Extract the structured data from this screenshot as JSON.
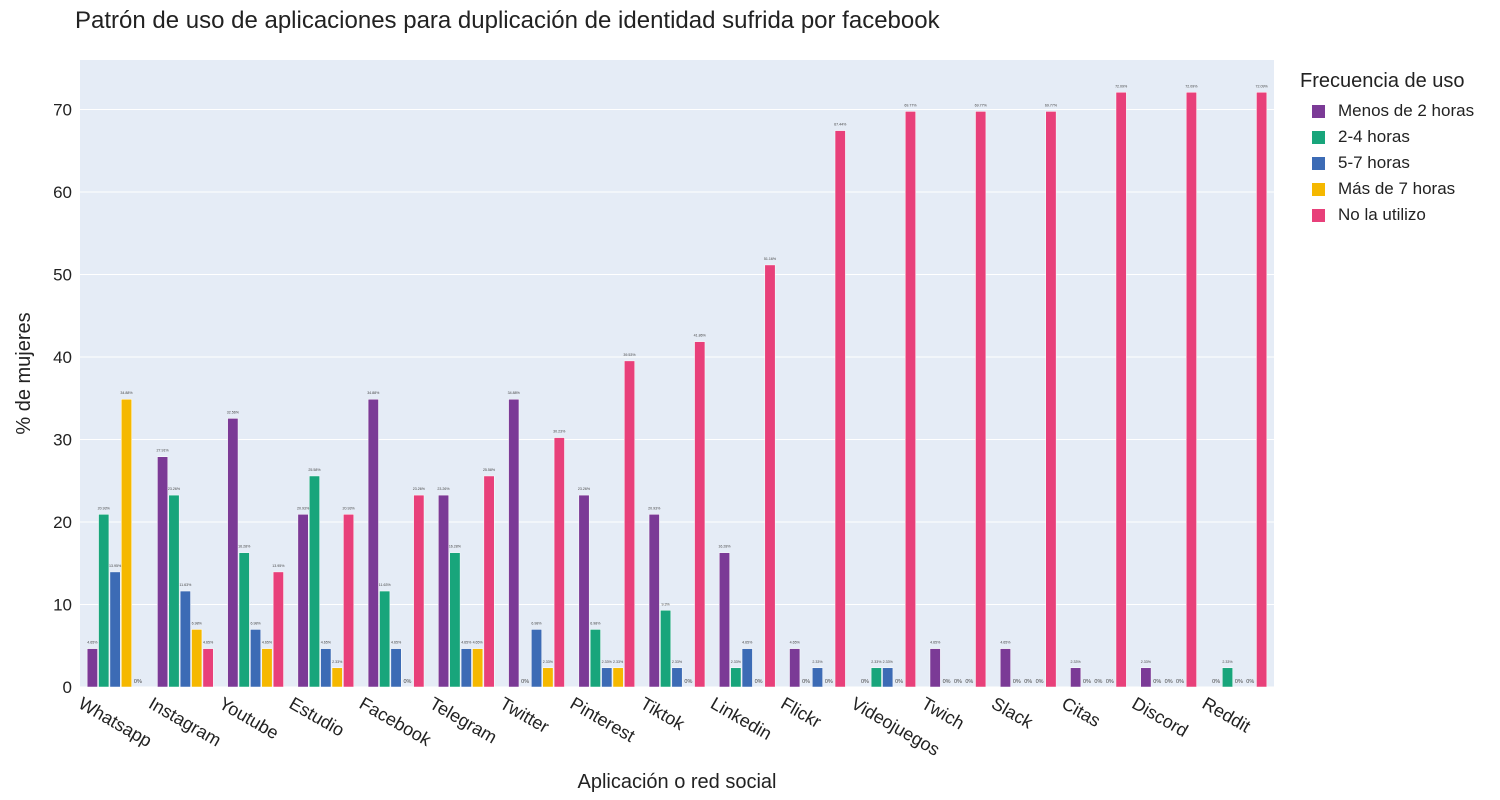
{
  "chart_data": {
    "type": "bar",
    "title": "Patrón de uso de aplicaciones para duplicación de identidad sufrida por facebook",
    "xlabel": "Aplicación o red social",
    "ylabel": "% de mujeres",
    "ylim": [
      0,
      76
    ],
    "yticks": [
      0,
      10,
      20,
      30,
      40,
      50,
      60,
      70
    ],
    "ytick_labels": [
      "0",
      "10",
      "20",
      "30",
      "40",
      "50",
      "60",
      "70"
    ],
    "grid": true,
    "legend_title": "Frecuencia de uso",
    "legend_position": "top-right",
    "categories": [
      "Whatsapp",
      "Instagram",
      "Youtube",
      "Estudio",
      "Facebook",
      "Telegram",
      "Twitter",
      "Pinterest",
      "Tiktok",
      "Linkedin",
      "Flickr",
      "Videojuegos",
      "Twich",
      "Slack",
      "Citas",
      "Discord",
      "Reddit"
    ],
    "series": [
      {
        "name": "Menos de 2 horas",
        "color": "#7b3a96",
        "values": [
          4.65,
          27.91,
          32.56,
          20.93,
          34.88,
          23.26,
          34.88,
          23.26,
          20.93,
          16.28,
          4.65,
          0,
          4.65,
          4.65,
          2.33,
          2.33,
          0
        ],
        "labels": [
          "4.65%",
          "27.91%",
          "32.56%",
          "20.93%",
          "34.88%",
          "23.26%",
          "34.88%",
          "23.26%",
          "20.93%",
          "16.28%",
          "4.65%",
          "0%",
          "4.65%",
          "4.65%",
          "2.33%",
          "2.33%",
          "0%"
        ]
      },
      {
        "name": "2-4 horas",
        "color": "#18a57b",
        "values": [
          20.93,
          23.26,
          16.28,
          25.58,
          11.63,
          16.28,
          0,
          6.98,
          9.3,
          2.33,
          0,
          2.33,
          0,
          0,
          0,
          0,
          2.33
        ],
        "labels": [
          "20.93%",
          "23.26%",
          "16.28%",
          "25.58%",
          "11.63%",
          "16.28%",
          "0%",
          "6.98%",
          "9.3%",
          "2.33%",
          "0%",
          "2.33%",
          "0%",
          "0%",
          "0%",
          "0%",
          "2.33%"
        ]
      },
      {
        "name": "5-7 horas",
        "color": "#3c6bb5",
        "values": [
          13.95,
          11.63,
          6.98,
          4.65,
          4.65,
          4.65,
          6.98,
          2.33,
          2.33,
          4.65,
          2.33,
          2.33,
          0,
          0,
          0,
          0,
          0
        ],
        "labels": [
          "13.95%",
          "11.63%",
          "6.98%",
          "4.65%",
          "4.65%",
          "4.65%",
          "6.98%",
          "2.33%",
          "2.33%",
          "4.65%",
          "2.33%",
          "2.33%",
          "0%",
          "0%",
          "0%",
          "0%",
          "0%"
        ]
      },
      {
        "name": "Más de 7 horas",
        "color": "#f5b800",
        "values": [
          34.88,
          6.98,
          4.65,
          2.33,
          0,
          4.65,
          2.33,
          2.33,
          0,
          0,
          0,
          0,
          0,
          0,
          0,
          0,
          0
        ],
        "labels": [
          "34.88%",
          "6.98%",
          "4.65%",
          "2.33%",
          "0%",
          "4.65%",
          "2.33%",
          "2.33%",
          "0%",
          "0%",
          "0%",
          "0%",
          "0%",
          "0%",
          "0%",
          "0%",
          "0%"
        ]
      },
      {
        "name": "No la utilizo",
        "color": "#e8407a",
        "values": [
          0,
          4.65,
          13.95,
          20.93,
          23.26,
          25.58,
          30.23,
          39.53,
          41.86,
          51.16,
          67.44,
          69.77,
          69.77,
          69.77,
          72.09,
          72.09,
          72.09
        ],
        "labels": [
          "0%",
          "4.65%",
          "13.95%",
          "20.93%",
          "23.26%",
          "25.58%",
          "30.23%",
          "39.53%",
          "41.86%",
          "51.16%",
          "67.44%",
          "69.77%",
          "69.77%",
          "69.77%",
          "72.09%",
          "72.09%",
          "72.09%"
        ]
      }
    ]
  }
}
